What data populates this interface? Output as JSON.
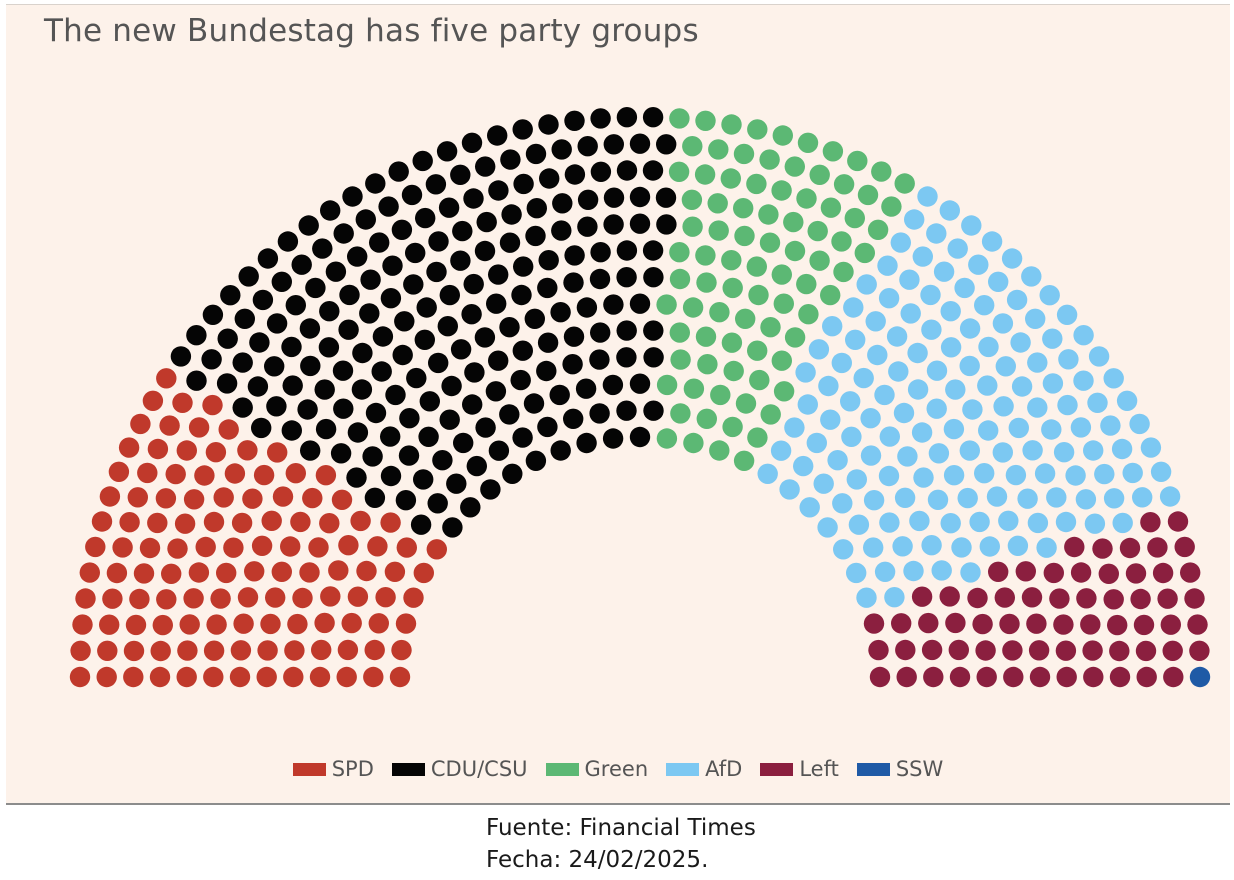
{
  "chart_data": {
    "type": "hemicycle",
    "title": "The new Bundestag has five party groups",
    "total_seats": 630,
    "series": [
      {
        "name": "SPD",
        "seats": 120,
        "color": "#c0392b"
      },
      {
        "name": "CDU/CSU",
        "seats": 208,
        "color": "#050505"
      },
      {
        "name": "Green",
        "seats": 85,
        "color": "#5cb874"
      },
      {
        "name": "AfD",
        "seats": 152,
        "color": "#7cc8f2"
      },
      {
        "name": "Left",
        "seats": 64,
        "color": "#8b1f3f"
      },
      {
        "name": "SSW",
        "seats": 1,
        "color": "#1f5aa6"
      }
    ],
    "legend_position": "bottom-center"
  },
  "source": {
    "line1": "Fuente: Financial Times",
    "line2": "Fecha: 24/02/2025."
  }
}
